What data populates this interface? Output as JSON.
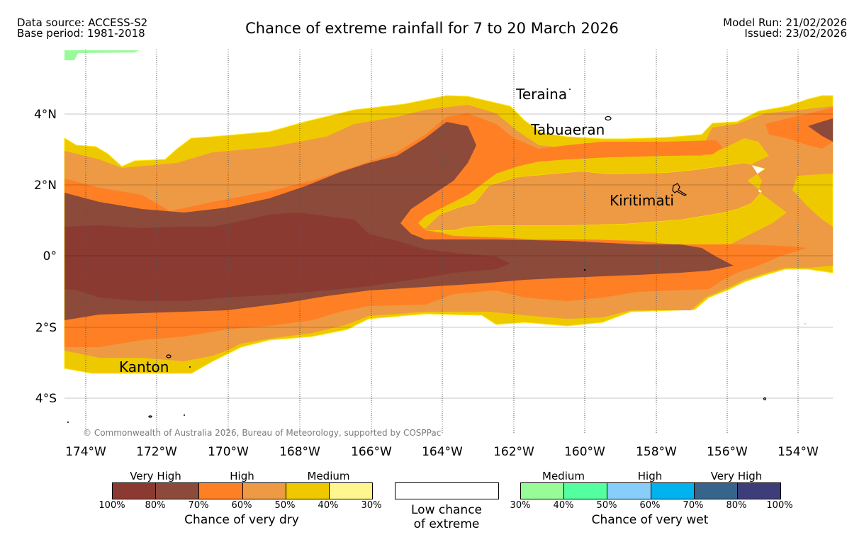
{
  "header": {
    "data_source": "Data source: ACCESS-S2",
    "base_period": "Base period: 1981-2018",
    "title": "Chance of extreme rainfall for 7 to 20 March 2026",
    "model_run": "Model Run: 21/02/2026",
    "issued": "Issued: 23/02/2026"
  },
  "map": {
    "lon_labels": [
      "174°W",
      "172°W",
      "170°W",
      "168°W",
      "166°W",
      "164°W",
      "162°W",
      "160°W",
      "158°W",
      "156°W",
      "154°W"
    ],
    "lat_labels": [
      "4°N",
      "2°N",
      "0°",
      "2°S",
      "4°S"
    ],
    "places": [
      "Teraina",
      "Tabuaeran",
      "Kiritimati",
      "Kanton"
    ],
    "copyright": "© Commonwealth of Australia 2026, Bureau of Meteorology, supported by COSPPac"
  },
  "legend": {
    "dry": {
      "levels": [
        "Very High",
        "High",
        "Medium"
      ],
      "colors": [
        "#8b3a32",
        "#8b4a3a",
        "#ff7f24",
        "#ee9944",
        "#eec900",
        "#fff68f"
      ],
      "ticks": [
        "100%",
        "80%",
        "70%",
        "60%",
        "50%",
        "40%",
        "30%"
      ],
      "caption": "Chance of very dry"
    },
    "low": {
      "line1": "Low chance",
      "line2": "of extreme"
    },
    "wet": {
      "levels": [
        "Medium",
        "High",
        "Very High"
      ],
      "colors": [
        "#98fb98",
        "#54ff9f",
        "#87cefa",
        "#00b2ee",
        "#36648b",
        "#3d3d7a"
      ],
      "ticks": [
        "30%",
        "40%",
        "50%",
        "60%",
        "70%",
        "80%",
        "100%"
      ],
      "caption": "Chance of very wet"
    }
  }
}
